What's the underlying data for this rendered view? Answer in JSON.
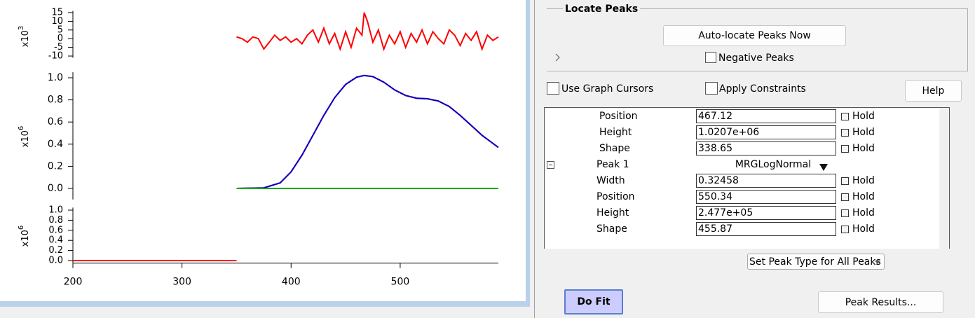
{
  "chart_data": [
    {
      "type": "line",
      "axis_label": "x10",
      "axis_label_exponent": "3",
      "xlim": [
        200,
        590
      ],
      "ylim": [
        -11,
        16
      ],
      "yticks": [
        15,
        10,
        5,
        0,
        -5,
        -10
      ],
      "series": [
        {
          "color": "#ff0000",
          "x": [
            350,
            355,
            360,
            365,
            370,
            375,
            380,
            385,
            390,
            395,
            400,
            405,
            410,
            415,
            420,
            425,
            430,
            435,
            440,
            445,
            450,
            455,
            460,
            465,
            467,
            470,
            475,
            480,
            485,
            490,
            495,
            500,
            505,
            510,
            515,
            520,
            525,
            530,
            535,
            540,
            545,
            550,
            555,
            560,
            565,
            570,
            575,
            580,
            585,
            590
          ],
          "values": [
            1,
            0,
            -2,
            1,
            0,
            -6,
            -2,
            2,
            -1,
            1,
            -2,
            0,
            -3,
            2,
            5,
            -2,
            6,
            -3,
            3,
            -6,
            4,
            -5,
            6,
            2,
            15,
            10,
            -2,
            5,
            -6,
            2,
            -3,
            4,
            -5,
            3,
            -2,
            5,
            -3,
            4,
            0,
            -3,
            5,
            2,
            -4,
            3,
            -1,
            4,
            -6,
            2,
            -1,
            1
          ]
        }
      ]
    },
    {
      "type": "line",
      "axis_label": "x10",
      "axis_label_exponent": "6",
      "xlim": [
        200,
        590
      ],
      "ylim": [
        -0.1,
        1.05
      ],
      "yticks": [
        {
          "value": 1,
          "label": "1.0"
        },
        {
          "value": 0.8,
          "label": "0.8"
        },
        {
          "value": 0.6,
          "label": "0.6"
        },
        {
          "value": 0.4,
          "label": "0.4"
        },
        {
          "value": 0.2,
          "label": "0.2"
        },
        {
          "value": 0,
          "label": "0.0"
        }
      ],
      "series": [
        {
          "color": "#ff0000",
          "x": [
            350,
            375,
            390,
            400,
            410,
            420,
            430,
            440,
            450,
            460,
            467,
            475,
            485,
            495,
            505,
            515,
            525,
            535,
            545,
            555,
            565,
            575,
            590
          ],
          "values": [
            0,
            0.005,
            0.05,
            0.15,
            0.3,
            0.48,
            0.66,
            0.82,
            0.94,
            1.005,
            1.02,
            1.01,
            0.96,
            0.89,
            0.84,
            0.815,
            0.81,
            0.79,
            0.74,
            0.66,
            0.57,
            0.48,
            0.37
          ]
        },
        {
          "color": "#0000cc",
          "x": [
            350,
            375,
            390,
            400,
            410,
            420,
            430,
            440,
            450,
            460,
            467,
            475,
            485,
            495,
            505,
            515,
            525,
            535,
            545,
            555,
            565,
            575,
            590
          ],
          "values": [
            0,
            0.005,
            0.05,
            0.15,
            0.3,
            0.48,
            0.66,
            0.82,
            0.94,
            1.005,
            1.02,
            1.01,
            0.96,
            0.89,
            0.84,
            0.815,
            0.81,
            0.79,
            0.74,
            0.66,
            0.57,
            0.48,
            0.37
          ]
        },
        {
          "color": "#00aa00",
          "x": [
            350,
            590
          ],
          "values": [
            0,
            0
          ]
        }
      ]
    },
    {
      "type": "line",
      "axis_label": "x10",
      "axis_label_exponent": "6",
      "xlim": [
        200,
        590
      ],
      "ylim": [
        -0.05,
        1.05
      ],
      "xticks": [
        200,
        300,
        400,
        500
      ],
      "yticks": [
        {
          "value": 1,
          "label": "1.0"
        },
        {
          "value": 0.8,
          "label": "0.8"
        },
        {
          "value": 0.6,
          "label": "0.6"
        },
        {
          "value": 0.4,
          "label": "0.4"
        },
        {
          "value": 0.2,
          "label": "0.2"
        },
        {
          "value": 0,
          "label": "0.0"
        }
      ],
      "series": [
        {
          "color": "#ff0000",
          "x": [
            200,
            350
          ],
          "values": [
            0,
            0
          ]
        }
      ]
    }
  ],
  "panel": {
    "group_title": "Locate Peaks",
    "auto_locate_button": "Auto-locate Peaks Now",
    "negative_peaks": "Negative Peaks",
    "use_graph_cursors": "Use Graph Cursors",
    "apply_constraints": "Apply Constraints",
    "help_button": "Help",
    "rows": [
      {
        "label": "Position",
        "value": "467.12",
        "hold": "Hold"
      },
      {
        "label": "Height",
        "value": "1.0207e+06",
        "hold": "Hold"
      },
      {
        "label": "Shape",
        "value": "338.65",
        "hold": "Hold"
      },
      {
        "label": "Peak 1",
        "type": "MRGLogNormal"
      },
      {
        "label": "Width",
        "value": "0.32458",
        "hold": "Hold"
      },
      {
        "label": "Position",
        "value": "550.34",
        "hold": "Hold"
      },
      {
        "label": "Height",
        "value": "2.477e+05",
        "hold": "Hold"
      },
      {
        "label": "Shape",
        "value": "455.87",
        "hold": "Hold"
      }
    ],
    "set_peak_type": "Set Peak Type for All Peaks",
    "do_fit_button": "Do Fit",
    "peak_results_button": "Peak Results..."
  }
}
